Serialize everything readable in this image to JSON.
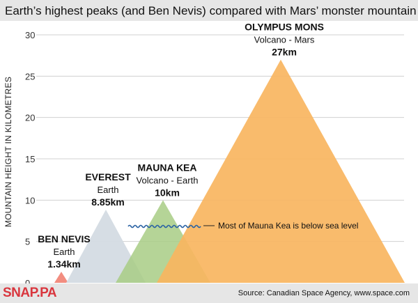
{
  "header": {
    "title": "Earth’s highest peaks (and Ben Nevis) compared with Mars’ monster mountain"
  },
  "footer": {
    "brand": "SNAP.PA",
    "source": "Source: Canadian Space Agency, www.space.com"
  },
  "colors": {
    "ben_nevis": "#f28d80",
    "everest": "#d4dbe3",
    "mauna_kea": "#a8cc85",
    "olympus_mons": "#f9b55f",
    "sea_wave": "#2a62a3",
    "grid": "#d0d0d0",
    "title_bg": "#e6e6e6"
  },
  "chart_data": {
    "type": "area",
    "title": "Earth’s highest peaks (and Ben Nevis) compared with Mars’ monster mountain",
    "ylabel": "MOUNTAIN HEIGHT IN KILOMETRES",
    "ylim": [
      0,
      30
    ],
    "yticks": [
      0,
      5,
      10,
      15,
      20,
      25,
      30
    ],
    "grid": true,
    "peaks": [
      {
        "name": "BEN NEVIS",
        "location": "Earth",
        "value_label": "1.34km",
        "height": 1.34
      },
      {
        "name": "EVEREST",
        "location": "Earth",
        "value_label": "8.85km",
        "height": 8.85
      },
      {
        "name": "MAUNA KEA",
        "location": "Volcano - Earth",
        "value_label": "10km",
        "height": 10
      },
      {
        "name": "OLYMPUS MONS",
        "location": "Volcano - Mars",
        "value_label": "27km",
        "height": 27
      }
    ],
    "annotation": "Most of Mauna Kea is below sea level"
  }
}
